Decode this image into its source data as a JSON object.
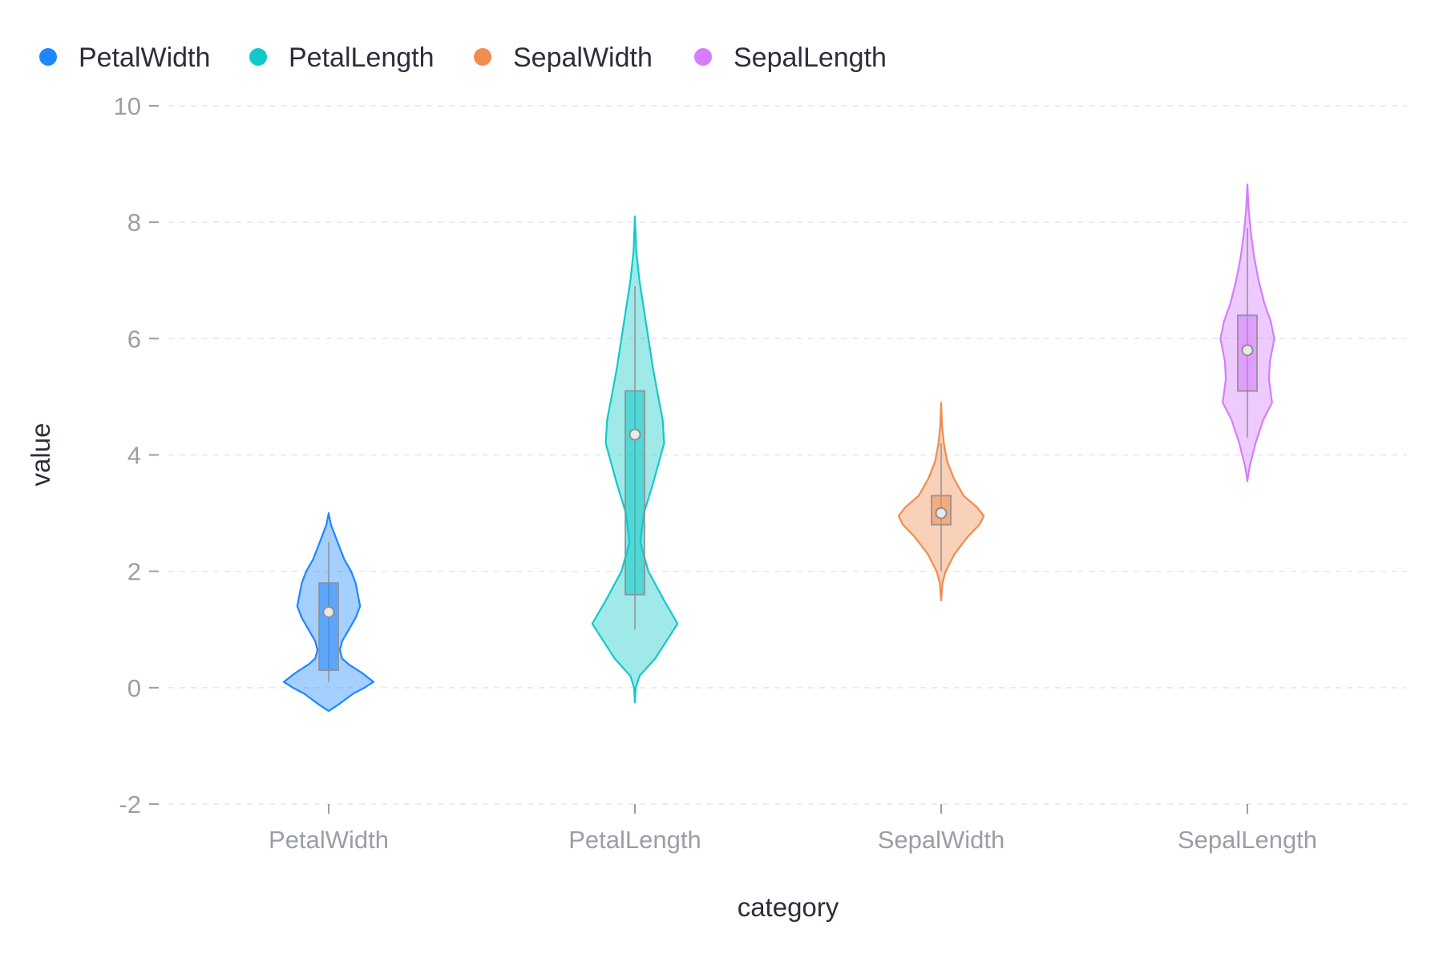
{
  "chart_data": {
    "type": "violin",
    "xlabel": "category",
    "ylabel": "value",
    "ylim": [
      -2,
      10
    ],
    "y_ticks": [
      -2,
      0,
      2,
      4,
      6,
      8,
      10
    ],
    "y_tick_labels": [
      "-2",
      "0",
      "2",
      "4",
      "6",
      "8",
      "10"
    ],
    "categories": [
      "PetalWidth",
      "PetalLength",
      "SepalWidth",
      "SepalLength"
    ],
    "legend": {
      "position": "top-left",
      "entries": [
        "PetalWidth",
        "PetalLength",
        "SepalWidth",
        "SepalLength"
      ]
    },
    "grid": {
      "horizontal": true,
      "style": "dashed"
    },
    "series": [
      {
        "name": "PetalWidth",
        "color": "#1f86ff",
        "box": {
          "whisker_low": 0.1,
          "q1": 0.3,
          "median": 1.3,
          "q3": 1.8,
          "whisker_high": 2.5,
          "mean": 1.3
        },
        "density": [
          [
            -0.4,
            0.0
          ],
          [
            -0.3,
            0.2
          ],
          [
            -0.1,
            0.55
          ],
          [
            0.0,
            0.8
          ],
          [
            0.1,
            1.0
          ],
          [
            0.25,
            0.75
          ],
          [
            0.4,
            0.45
          ],
          [
            0.5,
            0.3
          ],
          [
            0.65,
            0.25
          ],
          [
            0.8,
            0.3
          ],
          [
            1.0,
            0.45
          ],
          [
            1.2,
            0.6
          ],
          [
            1.4,
            0.7
          ],
          [
            1.6,
            0.65
          ],
          [
            1.8,
            0.6
          ],
          [
            2.0,
            0.5
          ],
          [
            2.2,
            0.35
          ],
          [
            2.4,
            0.25
          ],
          [
            2.6,
            0.15
          ],
          [
            2.8,
            0.05
          ],
          [
            3.0,
            0.0
          ]
        ]
      },
      {
        "name": "PetalLength",
        "color": "#12c9c9",
        "box": {
          "whisker_low": 1.0,
          "q1": 1.6,
          "median": 4.35,
          "q3": 5.1,
          "whisker_high": 6.9,
          "mean": 4.35
        },
        "density": [
          [
            -0.25,
            0.0
          ],
          [
            0.0,
            0.02
          ],
          [
            0.2,
            0.1
          ],
          [
            0.5,
            0.45
          ],
          [
            0.8,
            0.7
          ],
          [
            1.1,
            0.95
          ],
          [
            1.5,
            0.65
          ],
          [
            2.0,
            0.3
          ],
          [
            2.5,
            0.12
          ],
          [
            3.0,
            0.2
          ],
          [
            3.5,
            0.4
          ],
          [
            4.2,
            0.65
          ],
          [
            4.6,
            0.62
          ],
          [
            5.0,
            0.52
          ],
          [
            5.5,
            0.4
          ],
          [
            6.0,
            0.3
          ],
          [
            6.5,
            0.2
          ],
          [
            7.0,
            0.1
          ],
          [
            7.5,
            0.03
          ],
          [
            8.1,
            0.0
          ]
        ]
      },
      {
        "name": "SepalWidth",
        "color": "#f08c4e",
        "box": {
          "whisker_low": 2.0,
          "q1": 2.8,
          "median": 3.0,
          "q3": 3.3,
          "whisker_high": 4.2,
          "mean": 3.0
        },
        "density": [
          [
            1.5,
            0.0
          ],
          [
            1.8,
            0.03
          ],
          [
            2.0,
            0.1
          ],
          [
            2.3,
            0.3
          ],
          [
            2.6,
            0.6
          ],
          [
            2.8,
            0.85
          ],
          [
            2.95,
            0.95
          ],
          [
            3.1,
            0.8
          ],
          [
            3.3,
            0.5
          ],
          [
            3.6,
            0.28
          ],
          [
            3.9,
            0.13
          ],
          [
            4.2,
            0.06
          ],
          [
            4.5,
            0.02
          ],
          [
            4.9,
            0.0
          ]
        ]
      },
      {
        "name": "SepalLength",
        "color": "#d57cff",
        "box": {
          "whisker_low": 4.3,
          "q1": 5.1,
          "median": 5.8,
          "q3": 6.4,
          "whisker_high": 7.9,
          "mean": 5.8
        },
        "density": [
          [
            3.55,
            0.0
          ],
          [
            3.8,
            0.05
          ],
          [
            4.2,
            0.18
          ],
          [
            4.6,
            0.35
          ],
          [
            4.9,
            0.55
          ],
          [
            5.3,
            0.48
          ],
          [
            5.6,
            0.5
          ],
          [
            6.0,
            0.6
          ],
          [
            6.3,
            0.52
          ],
          [
            6.6,
            0.38
          ],
          [
            7.0,
            0.25
          ],
          [
            7.4,
            0.15
          ],
          [
            7.8,
            0.08
          ],
          [
            8.2,
            0.03
          ],
          [
            8.65,
            0.0
          ]
        ]
      }
    ]
  }
}
